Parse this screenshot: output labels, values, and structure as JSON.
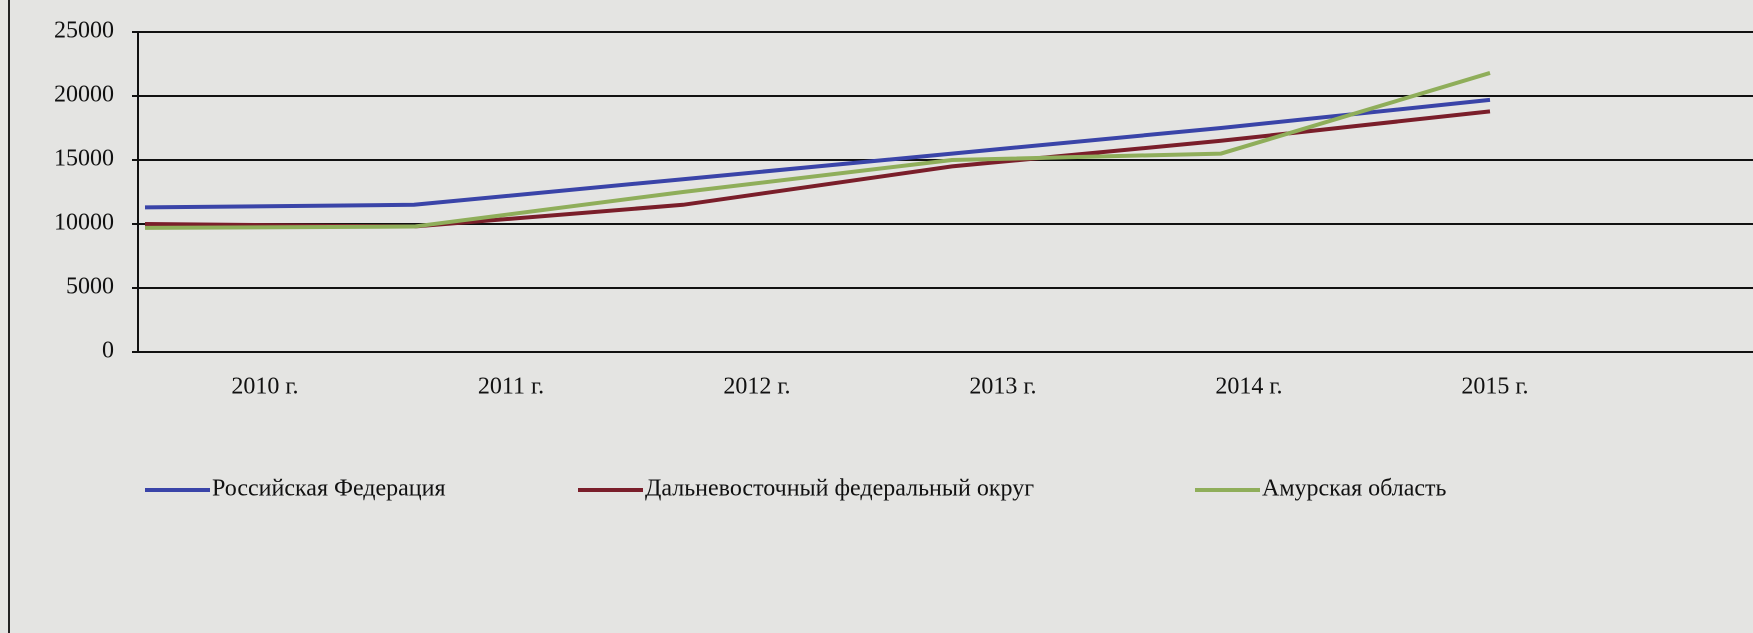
{
  "chart_data": {
    "type": "line",
    "categories": [
      "2010 г.",
      "2011 г.",
      "2012 г.",
      "2013 г.",
      "2014 г.",
      "2015 г."
    ],
    "series": [
      {
        "name": "Российская Федерация",
        "color": "#3a44a8",
        "values": [
          11300,
          11500,
          13500,
          15500,
          17500,
          19700
        ]
      },
      {
        "name": "Дальневосточный федеральный округ",
        "color": "#7a1e2a",
        "values": [
          10000,
          9800,
          11500,
          14500,
          16500,
          18800
        ]
      },
      {
        "name": "Амурская область",
        "color": "#8fae5a",
        "values": [
          9700,
          9800,
          12500,
          15000,
          15500,
          21800
        ]
      }
    ],
    "ylim": [
      0,
      25000
    ],
    "yticks": [
      0,
      5000,
      10000,
      15000,
      20000,
      25000
    ],
    "grid": true,
    "legend": "bottom"
  }
}
